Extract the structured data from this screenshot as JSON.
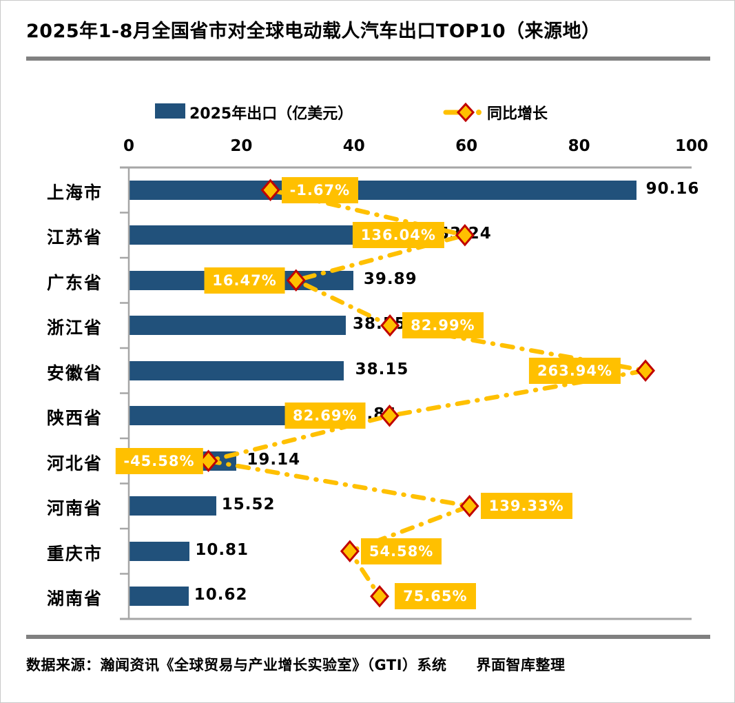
{
  "header": {
    "title": "2025年1-8月全国省市对全球电动载人汽车出口TOP10（来源地）"
  },
  "legend": {
    "bar_label": "2025年出口（亿美元）",
    "line_label": "同比增长"
  },
  "footer": {
    "source_note": "数据来源：瀚闻资讯《全球贸易与产业增长实验室》（GTI）系统　　界面智库整理"
  },
  "colors": {
    "bar": "#21517B",
    "line": "#FFC000",
    "marker_fill": "#FFC000",
    "marker_border": "#C00000",
    "growth_badge_bg": "#FFC000",
    "growth_badge_text": "#ffffff",
    "axis": "#A6A6A6",
    "divider": "#808080"
  },
  "chart_data": {
    "type": "bar",
    "subtype": "horizontal bar with line overlay (combo)",
    "title": "2025年1-8月全国省市对全球电动载人汽车出口TOP10（来源地）",
    "categories": [
      "上海市",
      "江苏省",
      "广东省",
      "浙江省",
      "安徽省",
      "陕西省",
      "河北省",
      "河南省",
      "重庆市",
      "湖南省"
    ],
    "series": [
      {
        "name": "2025年出口（亿美元）",
        "type": "bar",
        "color": "#21517B",
        "values": [
          90.16,
          53.24,
          39.89,
          38.55,
          38.15,
          33.84,
          19.14,
          15.52,
          10.81,
          10.62
        ],
        "labels": [
          "90.16",
          "53.24",
          "39.89",
          "38.55",
          "38.15",
          "33.84",
          "19.14",
          "15.52",
          "10.81",
          "10.62"
        ]
      },
      {
        "name": "同比增长",
        "type": "line",
        "line_style": "dash-dot",
        "color": "#FFC000",
        "marker": "diamond",
        "marker_border": "#C00000",
        "unit": "%",
        "values": [
          -1.67,
          136.04,
          16.47,
          82.99,
          263.94,
          82.69,
          -45.58,
          139.33,
          54.58,
          75.65
        ],
        "labels": [
          "-1.67%",
          "136.04%",
          "16.47%",
          "82.99%",
          "263.94%",
          "82.69%",
          "-45.58%",
          "139.33%",
          "54.58%",
          "75.65%"
        ],
        "label_sides": [
          "right",
          "left",
          "left",
          "right",
          "left",
          "left",
          "left",
          "right",
          "right",
          "right"
        ]
      }
    ],
    "value_axis": {
      "position": "top",
      "tick_labels": [
        "0",
        "20",
        "40",
        "60",
        "80",
        "100"
      ],
      "ticks": [
        0,
        20,
        40,
        60,
        80,
        100
      ],
      "range": [
        0,
        100
      ]
    },
    "secondary_axis": {
      "visible": false,
      "unit": "%",
      "range_estimate": [
        -102,
        297
      ]
    },
    "legend_position": "top",
    "grid": false
  }
}
